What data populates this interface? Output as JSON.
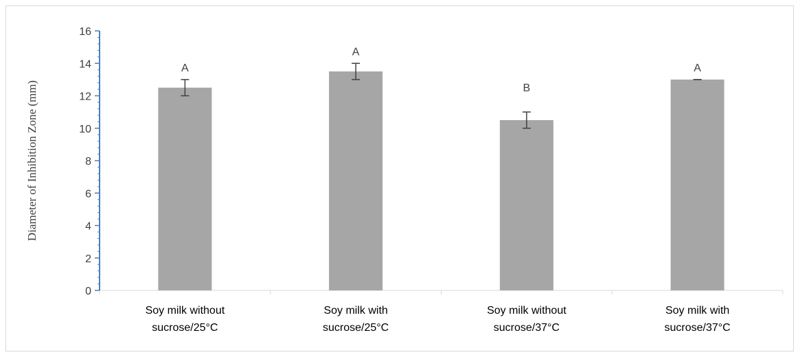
{
  "chart_data": {
    "type": "bar",
    "title": "",
    "xlabel": "",
    "ylabel": "Diameter of Inhibition Zone (mm)",
    "ylim": [
      0,
      16
    ],
    "yticks": [
      "0",
      "2",
      "4",
      "6",
      "8",
      "10",
      "12",
      "14",
      "16"
    ],
    "grid": false,
    "legend": "none",
    "categories": [
      [
        "Soy milk without",
        "sucrose/25°C"
      ],
      [
        "Soy milk with",
        "sucrose/25°C"
      ],
      [
        "Soy milk without",
        "sucrose/37°C"
      ],
      [
        "Soy milk with",
        "sucrose/37°C"
      ]
    ],
    "series": [
      {
        "values": [
          12.5,
          13.5,
          10.5,
          13.0
        ],
        "errors": [
          0.5,
          0.5,
          0.5,
          0.0
        ],
        "significance": [
          "A",
          "A",
          "B",
          "A"
        ]
      }
    ],
    "colors": {
      "bar": "#a6a6a6",
      "y_axis": "#4a7ebb",
      "x_axis": "#d9d9d9",
      "text": "#404040",
      "error_bar": "#404040"
    }
  }
}
